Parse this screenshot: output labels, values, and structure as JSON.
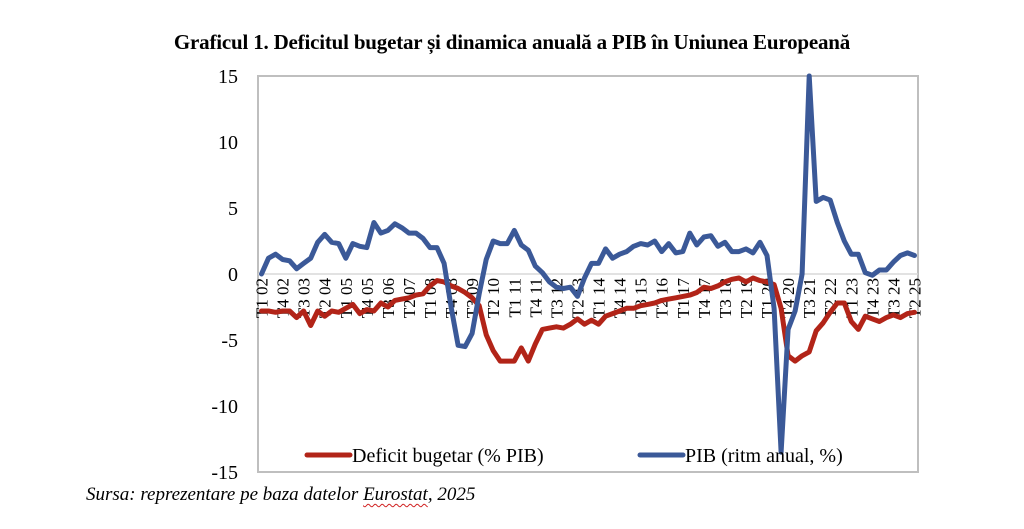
{
  "title": "Graficul 1. Deficitul bugetar și dinamica anuală a PIB în Uniunea Europeană",
  "source": {
    "prefix": "Sursa: reprezentare pe baza datelor ",
    "highlight": "Eurostat",
    "suffix": ", 2025"
  },
  "colors": {
    "deficit": "#b22418",
    "pib": "#3b5998",
    "gridline": "#d9d9d9",
    "border": "#bfbfbf"
  },
  "chart_data": {
    "type": "line",
    "title": "Graficul 1. Deficitul bugetar și dinamica anuală a PIB în Uniunea Europeană",
    "xlabel": "",
    "ylabel": "",
    "ylim": [
      -15,
      15
    ],
    "yticks": [
      15,
      10,
      5,
      0,
      -5,
      -10,
      -15
    ],
    "grid": false,
    "legend_position": "bottom-inside",
    "x_tick_labels": [
      "T1 02",
      "T4 02",
      "T3 03",
      "T2 04",
      "T1 05",
      "T4 05",
      "T3 06",
      "T2 07",
      "T1 08",
      "T4 08",
      "T3 09",
      "T2 10",
      "T1 11",
      "T4 11",
      "T3 12",
      "T2 13",
      "T1 14",
      "T4 14",
      "T3 15",
      "T2 16",
      "T1 17",
      "T4 17",
      "T3 18",
      "T2 19",
      "T1 20",
      "T4 20",
      "T3 21",
      "T2 22",
      "T1 23",
      "T4 23",
      "T3 24",
      "T2 25"
    ],
    "x_tick_step": 3,
    "x_start": "T1 02",
    "x_end": "T2 25",
    "series": [
      {
        "name": "Deficit bugetar (% PIB)",
        "color": "#b22418",
        "values": [
          -2.8,
          -2.8,
          -2.9,
          -2.8,
          -2.8,
          -3.3,
          -2.8,
          -3.9,
          -2.8,
          -3.2,
          -2.8,
          -2.9,
          -2.6,
          -2.3,
          -3.0,
          -2.7,
          -2.8,
          -2.2,
          -2.5,
          -2.0,
          -1.9,
          -1.8,
          -1.6,
          -1.5,
          -0.9,
          -0.5,
          -0.6,
          -0.9,
          -1.1,
          -1.4,
          -1.8,
          -2.4,
          -4.6,
          -5.8,
          -6.6,
          -6.6,
          -6.6,
          -5.6,
          -6.6,
          -5.3,
          -4.2,
          -4.1,
          -4.0,
          -4.1,
          -3.8,
          -3.4,
          -3.8,
          -3.5,
          -3.8,
          -3.2,
          -3.0,
          -2.8,
          -2.6,
          -2.6,
          -2.4,
          -2.3,
          -2.2,
          -2.0,
          -1.9,
          -1.8,
          -1.7,
          -1.6,
          -1.4,
          -1.0,
          -1.1,
          -0.9,
          -0.6,
          -0.4,
          -0.3,
          -0.6,
          -0.3,
          -0.5,
          -0.6,
          -0.8,
          -2.6,
          -6.2,
          -6.6,
          -6.2,
          -5.9,
          -4.3,
          -3.7,
          -2.9,
          -2.2,
          -2.2,
          -3.6,
          -4.2,
          -3.2,
          -3.4,
          -3.6,
          -3.3,
          -3.1,
          -3.3,
          -3.0,
          -2.9
        ]
      },
      {
        "name": "PIB (ritm anual, %)",
        "color": "#3b5998",
        "values": [
          0.0,
          1.2,
          1.5,
          1.1,
          1.0,
          0.4,
          0.8,
          1.2,
          2.4,
          3.0,
          2.4,
          2.3,
          1.2,
          2.3,
          2.1,
          2.0,
          3.9,
          3.1,
          3.3,
          3.8,
          3.5,
          3.1,
          3.1,
          2.7,
          2.0,
          2.0,
          0.8,
          -2.5,
          -5.4,
          -5.5,
          -4.5,
          -1.5,
          1.1,
          2.5,
          2.3,
          2.3,
          3.3,
          2.2,
          1.8,
          0.6,
          0.1,
          -0.6,
          -1.0,
          -1.1,
          -1.0,
          -1.7,
          -0.3,
          0.8,
          0.8,
          1.9,
          1.2,
          1.5,
          1.7,
          2.1,
          2.3,
          2.2,
          2.5,
          1.7,
          2.3,
          1.6,
          1.7,
          3.1,
          2.2,
          2.8,
          2.9,
          2.1,
          2.4,
          1.7,
          1.7,
          1.9,
          1.6,
          2.4,
          1.4,
          -2.6,
          -13.5,
          -4.2,
          -2.8,
          0.0,
          15.0,
          5.5,
          5.8,
          5.6,
          3.9,
          2.5,
          1.5,
          1.5,
          0.1,
          -0.1,
          0.3,
          0.3,
          0.9,
          1.4,
          1.6,
          1.4
        ]
      }
    ]
  }
}
